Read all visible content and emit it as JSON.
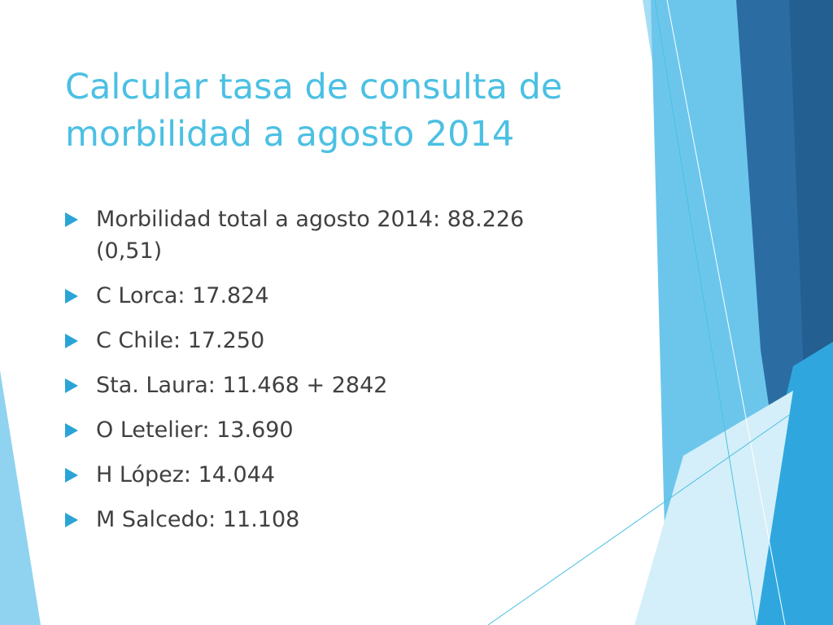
{
  "slide": {
    "title_lines": [
      "Calcular tasa de consulta de",
      "morbilidad a agosto 2014"
    ],
    "bullet_icon": "triangle-bullet-icon",
    "bullets": [
      {
        "lines": [
          "Morbilidad total a agosto 2014: 88.226",
          "(0,51)"
        ]
      },
      {
        "lines": [
          "C Lorca: 17.824"
        ]
      },
      {
        "lines": [
          "C Chile: 17.250"
        ]
      },
      {
        "lines": [
          "Sta. Laura: 11.468 + 2842"
        ]
      },
      {
        "lines": [
          "O Letelier: 13.690"
        ]
      },
      {
        "lines": [
          "H López: 14.044"
        ]
      },
      {
        "lines": [
          "M Salcedo: 11.108"
        ]
      }
    ]
  },
  "theme": {
    "title_color": "#4bc0e3",
    "text_color": "#404040",
    "bullet_color": "#2aa4d7",
    "accent_dark": "#2b6da3",
    "accent_mid": "#2aa4d7",
    "accent_light": "#8fd3f0"
  }
}
